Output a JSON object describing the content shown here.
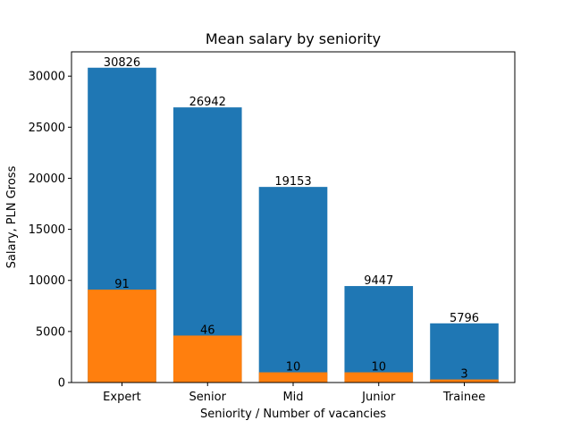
{
  "chart_data": {
    "type": "bar",
    "title": "Mean salary by seniority",
    "xlabel": "Seniority / Number of vacancies",
    "ylabel": "Salary, PLN Gross",
    "categories": [
      "Expert",
      "Senior",
      "Mid",
      "Junior",
      "Trainee"
    ],
    "ylim": [
      0,
      32380
    ],
    "yticks": [
      0,
      5000,
      10000,
      15000,
      20000,
      25000,
      30000
    ],
    "grid": false,
    "legend": "none",
    "series": [
      {
        "role": "mean salary",
        "color": "#1f77b4",
        "values": [
          30826,
          26942,
          19153,
          9447,
          5796
        ],
        "data_labels": [
          "30826",
          "26942",
          "19153",
          "9447",
          "5796"
        ]
      },
      {
        "role": "number of vacancies (drawn x100)",
        "color": "#ff7f0e",
        "values": [
          91,
          46,
          10,
          10,
          3
        ],
        "display_scale": 100,
        "data_labels": [
          "91",
          "46",
          "10",
          "10",
          "3"
        ]
      }
    ]
  }
}
